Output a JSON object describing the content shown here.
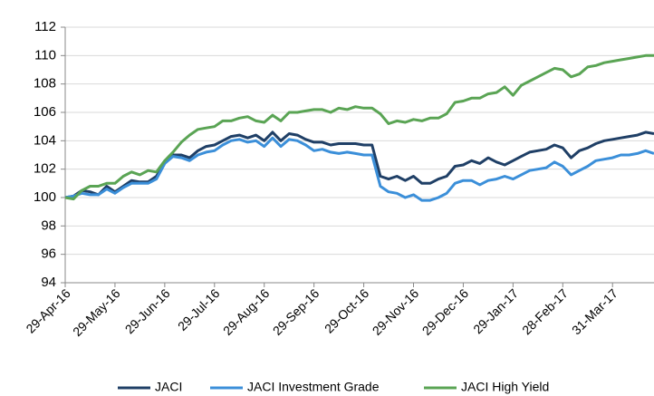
{
  "chart_data": {
    "type": "line",
    "categories": [
      "29-Apr-16",
      null,
      null,
      null,
      null,
      null,
      "29-May-16",
      null,
      null,
      null,
      null,
      null,
      "29-Jun-16",
      null,
      null,
      null,
      null,
      null,
      "29-Jul-16",
      null,
      null,
      null,
      null,
      null,
      "29-Aug-16",
      null,
      null,
      null,
      null,
      null,
      "29-Sep-16",
      null,
      null,
      null,
      null,
      null,
      "29-Oct-16",
      null,
      null,
      null,
      null,
      null,
      "29-Nov-16",
      null,
      null,
      null,
      null,
      null,
      "29-Dec-16",
      null,
      null,
      null,
      null,
      null,
      "29-Jan-17",
      null,
      null,
      null,
      null,
      null,
      "28-Feb-17",
      null,
      null,
      null,
      null,
      null,
      "31-Mar-17",
      null,
      null,
      null,
      null,
      null
    ],
    "series": [
      {
        "name": "JACI",
        "color": "#1f3f66",
        "values": [
          100,
          100.1,
          100.5,
          100.4,
          100.2,
          100.8,
          100.4,
          100.8,
          101.2,
          101.1,
          101.1,
          101.5,
          102.5,
          103.0,
          103.0,
          102.8,
          103.3,
          103.6,
          103.7,
          104.0,
          104.3,
          104.4,
          104.2,
          104.4,
          104.0,
          104.6,
          104.0,
          104.5,
          104.4,
          104.1,
          103.9,
          103.9,
          103.7,
          103.8,
          103.8,
          103.8,
          103.7,
          103.7,
          101.5,
          101.3,
          101.5,
          101.2,
          101.5,
          101.0,
          101.0,
          101.3,
          101.5,
          102.2,
          102.3,
          102.6,
          102.4,
          102.8,
          102.5,
          102.3,
          102.6,
          102.9,
          103.2,
          103.3,
          103.4,
          103.7,
          103.5,
          102.8,
          103.3,
          103.5,
          103.8,
          104.0,
          104.1,
          104.2,
          104.3,
          104.4,
          104.6,
          104.5
        ]
      },
      {
        "name": "JACI Investment Grade",
        "color": "#3b8fd9",
        "values": [
          100,
          100.1,
          100.3,
          100.2,
          100.2,
          100.6,
          100.3,
          100.7,
          101.0,
          101.0,
          101.0,
          101.3,
          102.4,
          102.9,
          102.8,
          102.6,
          103.0,
          103.2,
          103.3,
          103.7,
          104.0,
          104.1,
          103.9,
          104.0,
          103.6,
          104.2,
          103.6,
          104.1,
          104.0,
          103.7,
          103.3,
          103.4,
          103.2,
          103.1,
          103.2,
          103.1,
          103.0,
          103.0,
          100.8,
          100.4,
          100.3,
          100.0,
          100.2,
          99.8,
          99.8,
          100.0,
          100.3,
          101.0,
          101.2,
          101.2,
          100.9,
          101.2,
          101.3,
          101.5,
          101.3,
          101.6,
          101.9,
          102.0,
          102.1,
          102.5,
          102.2,
          101.6,
          101.9,
          102.2,
          102.6,
          102.7,
          102.8,
          103.0,
          103.0,
          103.1,
          103.3,
          103.1
        ]
      },
      {
        "name": "JACI High Yield",
        "color": "#5aa454",
        "values": [
          100,
          99.9,
          100.5,
          100.8,
          100.8,
          101.0,
          101.0,
          101.5,
          101.8,
          101.6,
          101.9,
          101.8,
          102.6,
          103.2,
          103.9,
          104.4,
          104.8,
          104.9,
          105.0,
          105.4,
          105.4,
          105.6,
          105.7,
          105.4,
          105.3,
          105.8,
          105.4,
          106.0,
          106.0,
          106.1,
          106.2,
          106.2,
          106.0,
          106.3,
          106.2,
          106.4,
          106.3,
          106.3,
          105.9,
          105.2,
          105.4,
          105.3,
          105.5,
          105.4,
          105.6,
          105.6,
          105.9,
          106.7,
          106.8,
          107.0,
          107.0,
          107.3,
          107.4,
          107.8,
          107.2,
          107.9,
          108.2,
          108.5,
          108.8,
          109.1,
          109.0,
          108.5,
          108.7,
          109.2,
          109.3,
          109.5,
          109.6,
          109.7,
          109.8,
          109.9,
          110.0,
          110.0
        ]
      }
    ],
    "ylim": [
      94,
      112
    ],
    "yticks": [
      94,
      96,
      98,
      100,
      102,
      104,
      106,
      108,
      110,
      112
    ],
    "grid": true,
    "legend": "bottom"
  }
}
